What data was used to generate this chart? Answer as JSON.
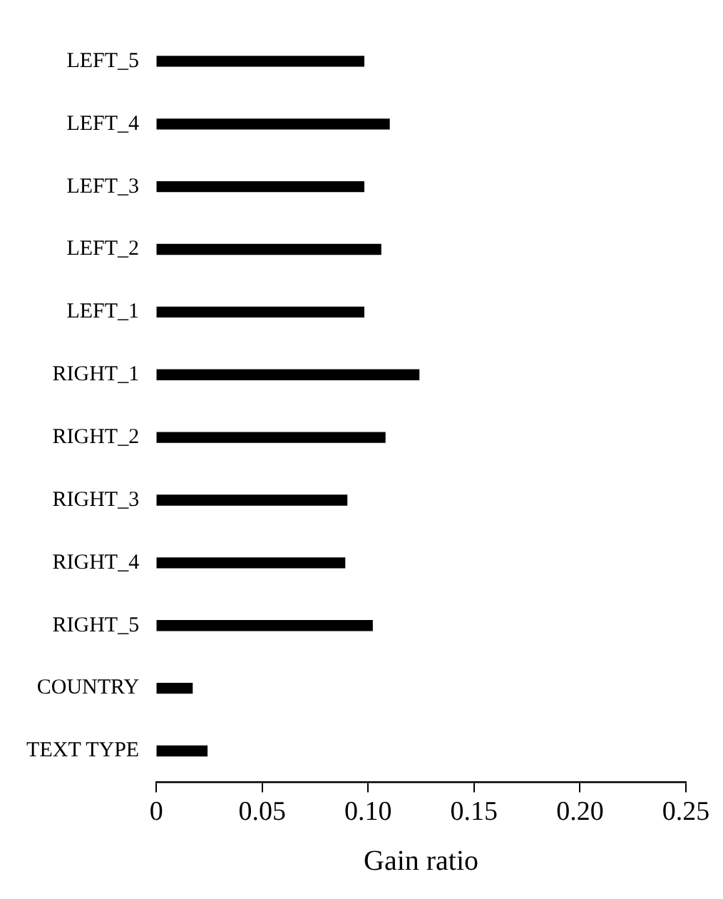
{
  "chart_data": {
    "type": "bar",
    "orientation": "horizontal",
    "xlabel": "Gain ratio",
    "categories": [
      "LEFT_5",
      "LEFT_4",
      "LEFT_3",
      "LEFT_2",
      "LEFT_1",
      "RIGHT_1",
      "RIGHT_2",
      "RIGHT_3",
      "RIGHT_4",
      "RIGHT_5",
      "COUNTRY",
      "TEXT TYPE"
    ],
    "values": [
      0.098,
      0.11,
      0.098,
      0.106,
      0.098,
      0.124,
      0.108,
      0.09,
      0.089,
      0.102,
      0.017,
      0.024
    ],
    "color": "#000000",
    "xlim": [
      0,
      0.25
    ],
    "xticks": [
      0,
      0.05,
      {
        "value": 0.1,
        "label": "0.10"
      },
      0.15,
      {
        "value": 0.2,
        "label": "0.20"
      },
      0.25
    ],
    "grid": false,
    "legend": false
  }
}
